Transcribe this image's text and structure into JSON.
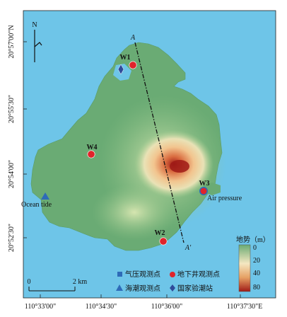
{
  "map": {
    "north_label": "N",
    "lat_ticks": [
      "20°57'00\"N",
      "20°55'30\"",
      "20°54'00\"",
      "20°52'30\""
    ],
    "lon_ticks": [
      "110°33'00\"",
      "110°34'30\"",
      "110°36'00\"",
      "110°37'30\"E"
    ],
    "profile_start_label": "A",
    "profile_end_label": "A'",
    "wells": [
      {
        "id": "W1",
        "label": "W1"
      },
      {
        "id": "W2",
        "label": "W2"
      },
      {
        "id": "W3",
        "label": "W3"
      },
      {
        "id": "W4",
        "label": "W4"
      }
    ],
    "air_pressure_label": "Air pressure",
    "ocean_tide_label": "Ocean tide",
    "scale_bar": {
      "start_label": "0",
      "end_label": "2 km"
    },
    "elevation_legend": {
      "title": "地势（m）",
      "ticks": [
        "0",
        "20",
        "40",
        "80"
      ],
      "colors": [
        "#6aab74",
        "#f4e7c1",
        "#e6a164",
        "#9f1a16"
      ]
    },
    "symbol_legend": [
      {
        "symbol": "square",
        "color": "#2e6bb8",
        "label": "气压观测点"
      },
      {
        "symbol": "circle",
        "color": "#e0242b",
        "label": "地下井观测点"
      },
      {
        "symbol": "triangle",
        "color": "#2e6bb8",
        "label": "海潮观测点"
      },
      {
        "symbol": "diamond",
        "color": "#2f4b9a",
        "label": "国家验潮站"
      }
    ],
    "colors": {
      "sea": "#6ec5e8",
      "land": "#6aab74"
    }
  }
}
